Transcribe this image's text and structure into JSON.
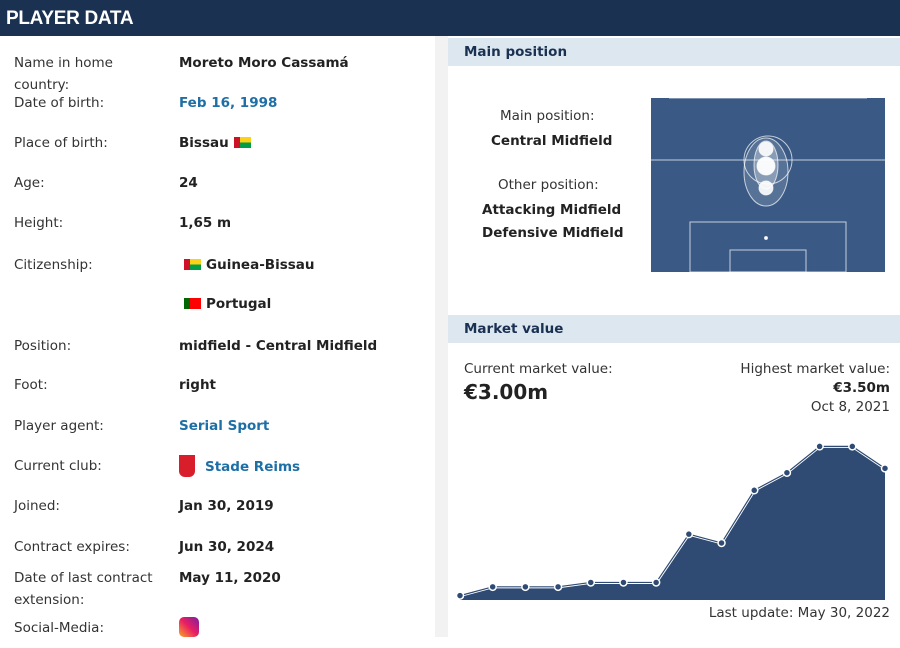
{
  "header": {
    "title": "PLAYER DATA"
  },
  "player": {
    "rows": [
      {
        "label": "Name in home country:",
        "value": "Moreto Moro Cassamá"
      },
      {
        "label": "Date of birth:",
        "value": "Feb 16, 1998",
        "link": true
      },
      {
        "label": "Place of birth:",
        "value": "Bissau"
      },
      {
        "label": "Age:",
        "value": "24"
      },
      {
        "label": "Height:",
        "value": "1,65 m"
      },
      {
        "label": "Citizenship:",
        "values": [
          "Guinea-Bissau",
          "Portugal"
        ]
      },
      {
        "label": "Position:",
        "value": "midfield - Central Midfield"
      },
      {
        "label": "Foot:",
        "value": "right"
      },
      {
        "label": "Player agent:",
        "value": "Serial Sport",
        "link": true
      },
      {
        "label": "Current club:",
        "value": "Stade Reims",
        "link": true
      },
      {
        "label": "Joined:",
        "value": "Jan 30, 2019"
      },
      {
        "label": "Contract expires:",
        "value": "Jun 30, 2024"
      },
      {
        "label": "Date of last contract extension:",
        "value": "May 11, 2020"
      },
      {
        "label": "Social-Media:"
      }
    ]
  },
  "position": {
    "title": "Main position",
    "main_label": "Main position:",
    "main": "Central Midfield",
    "other_label": "Other position:",
    "other": [
      "Attacking Midfield",
      "Defensive Midfield"
    ]
  },
  "market": {
    "title": "Market value",
    "current_label": "Current market value:",
    "current": "€3.00m",
    "highest_label": "Highest market value:",
    "highest": "€3.50m",
    "highest_date": "Oct 8, 2021",
    "update": "Last update: May 30, 2022"
  },
  "chart_data": {
    "type": "area",
    "color": "#2f4b73",
    "ylim": [
      0,
      3.6
    ],
    "values": [
      0.1,
      0.3,
      0.3,
      0.3,
      0.4,
      0.4,
      0.4,
      1.5,
      1.3,
      2.5,
      2.9,
      3.5,
      3.5,
      3.0
    ]
  }
}
